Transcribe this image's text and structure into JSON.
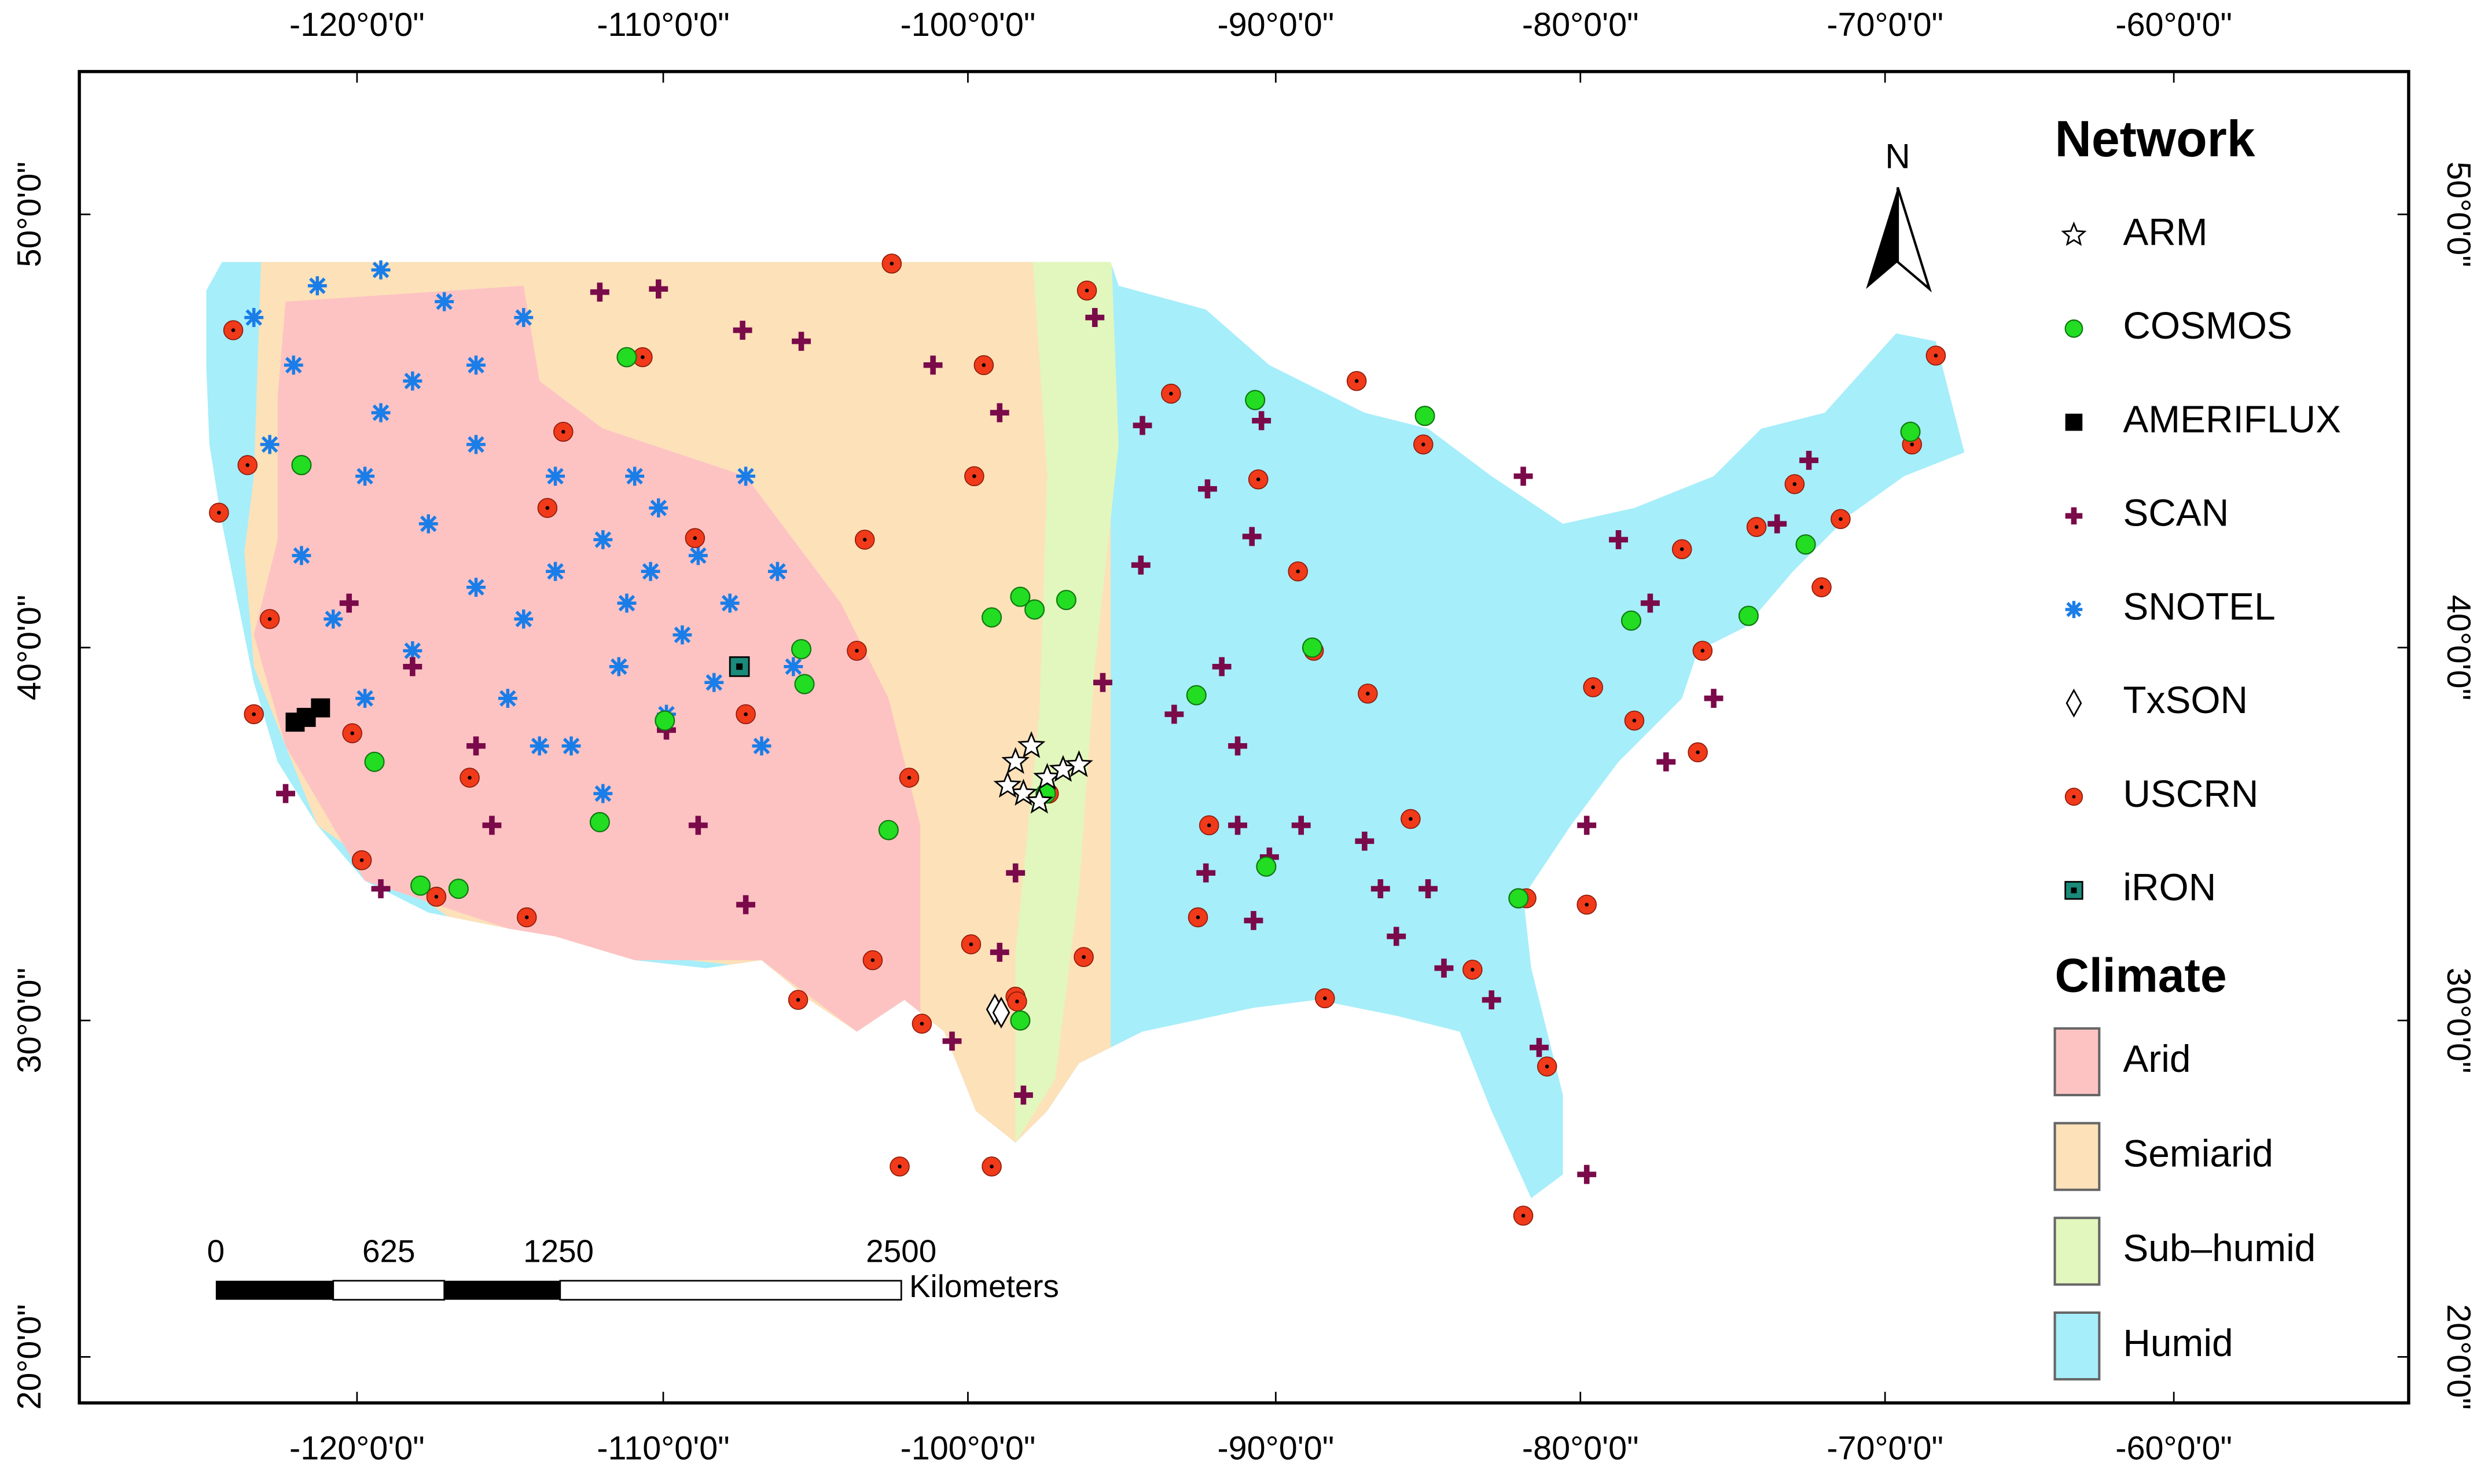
{
  "axes": {
    "top_ticks": [
      "-120°0'0\"",
      "-110°0'0\"",
      "-100°0'0\"",
      "-90°0'0\"",
      "-80°0'0\"",
      "-70°0'0\"",
      "-60°0'0\""
    ],
    "bottom_ticks": [
      "-120°0'0\"",
      "-110°0'0\"",
      "-100°0'0\"",
      "-90°0'0\"",
      "-80°0'0\"",
      "-70°0'0\"",
      "-60°0'0\""
    ],
    "left_ticks": [
      "50°0'0\"",
      "40°0'0\"",
      "30°0'0\"",
      "20°0'0\""
    ],
    "right_ticks": [
      "50°0'0\"",
      "40°0'0\"",
      "30°0'0\"",
      "20°0'0\""
    ]
  },
  "north_arrow": "N",
  "scale_bar": {
    "labels": [
      "0",
      "625",
      "1250",
      "2500"
    ],
    "unit": "Kilometers"
  },
  "legend": {
    "network_title": "Network",
    "network": [
      "ARM",
      "COSMOS",
      "AMERIFLUX",
      "SCAN",
      "SNOTEL",
      "TxSON",
      "USCRN",
      "iRON"
    ],
    "climate_title": "Climate",
    "climate": [
      "Arid",
      "Semiarid",
      "Sub–humid",
      "Humid"
    ]
  }
}
